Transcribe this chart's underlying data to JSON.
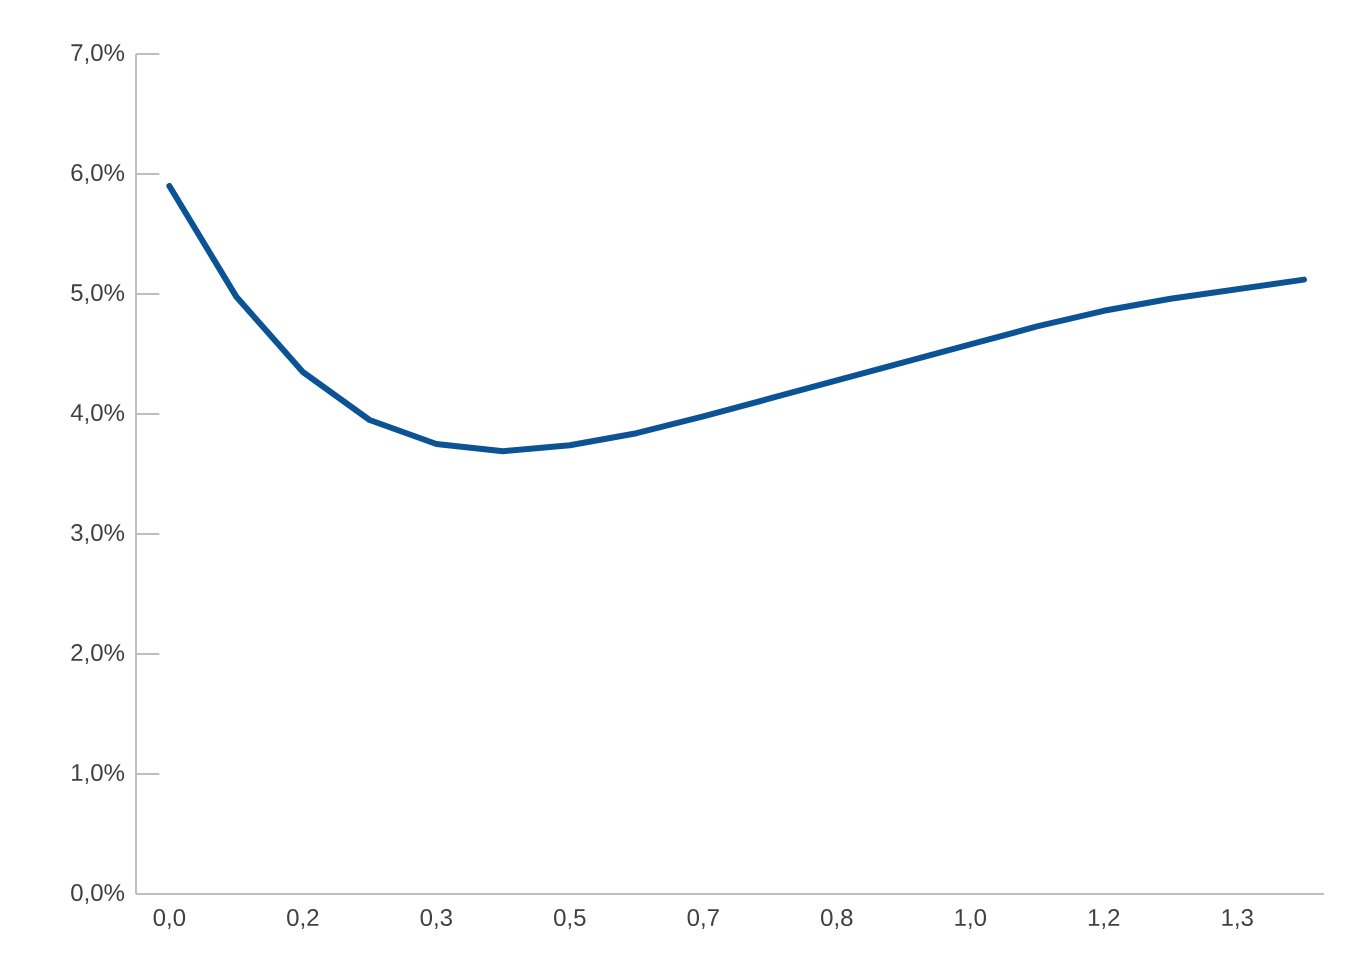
{
  "chart_data": {
    "type": "line",
    "categories": [
      "0,0",
      null,
      "0,2",
      null,
      "0,3",
      null,
      "0,5",
      null,
      "0,7",
      null,
      "0,8",
      null,
      "1,0",
      null,
      "1,2",
      null,
      "1,3",
      null
    ],
    "series": [
      {
        "color": "#0b5394",
        "values": [
          5.9,
          4.98,
          4.35,
          3.95,
          3.75,
          3.69,
          3.74,
          3.84,
          3.98,
          4.13,
          4.28,
          4.43,
          4.58,
          4.73,
          4.86,
          4.96,
          5.04,
          5.12
        ]
      }
    ],
    "ylim": [
      0,
      7
    ],
    "yticks": [
      {
        "value": 0,
        "label": "0,0%"
      },
      {
        "value": 1,
        "label": "1,0%"
      },
      {
        "value": 2,
        "label": "2,0%"
      },
      {
        "value": 3,
        "label": "3,0%"
      },
      {
        "value": 4,
        "label": "4,0%"
      },
      {
        "value": 5,
        "label": "5,0%"
      },
      {
        "value": 6,
        "label": "6,0%"
      },
      {
        "value": 7,
        "label": "7,0%"
      }
    ],
    "grid": false,
    "marker": "none",
    "line_style": "solid"
  }
}
